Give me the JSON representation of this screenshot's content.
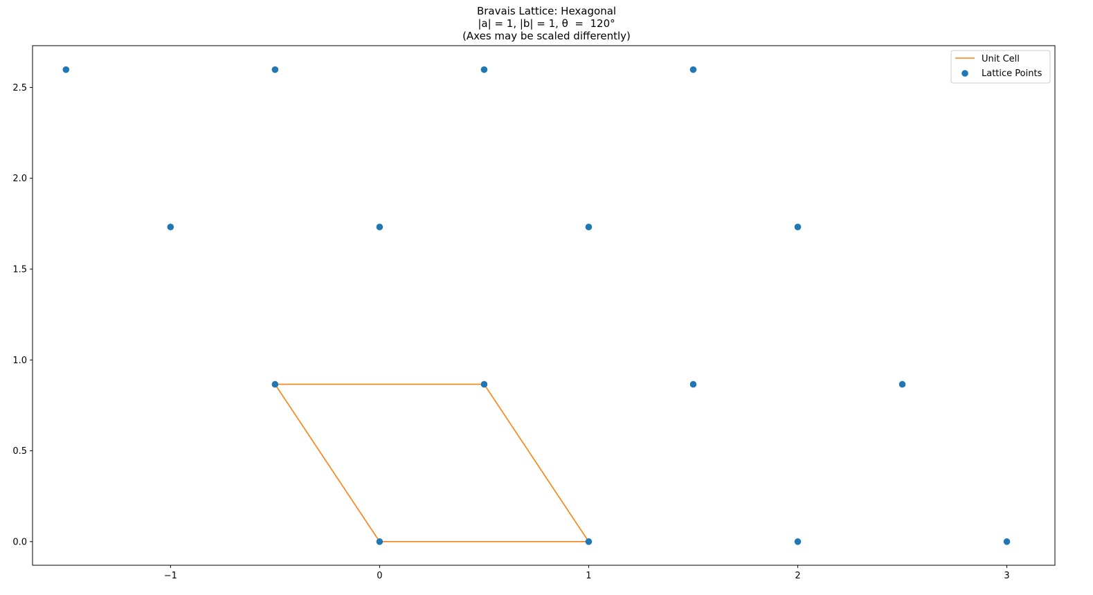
{
  "chart_data": {
    "type": "scatter",
    "title_lines": [
      "Bravais Lattice: Hexagonal",
      "|a| = 1, |b| = 1, θ  =  120°",
      "(Axes may be scaled differently)"
    ],
    "xlabel": "",
    "ylabel": "",
    "xlim": [
      -1.66,
      3.23
    ],
    "ylim": [
      -0.13,
      2.73
    ],
    "xticks": [
      -1,
      0,
      1,
      2,
      3
    ],
    "xtick_labels": [
      "−1",
      "0",
      "1",
      "2",
      "3"
    ],
    "yticks": [
      0.0,
      0.5,
      1.0,
      1.5,
      2.0,
      2.5
    ],
    "ytick_labels": [
      "0.0",
      "0.5",
      "1.0",
      "1.5",
      "2.0",
      "2.5"
    ],
    "grid": false,
    "legend_position": "upper right",
    "series": [
      {
        "name": "Unit Cell",
        "kind": "line",
        "color": "#ff7f0e",
        "points": [
          [
            0,
            0
          ],
          [
            1,
            0
          ],
          [
            0.5,
            0.866
          ],
          [
            -0.5,
            0.866
          ],
          [
            0,
            0
          ]
        ]
      },
      {
        "name": "Lattice Points",
        "kind": "scatter",
        "color": "#1f77b4",
        "points": [
          [
            -1.5,
            2.598
          ],
          [
            -0.5,
            2.598
          ],
          [
            0.5,
            2.598
          ],
          [
            1.5,
            2.598
          ],
          [
            -1,
            1.732
          ],
          [
            0,
            1.732
          ],
          [
            1,
            1.732
          ],
          [
            2,
            1.732
          ],
          [
            -0.5,
            0.866
          ],
          [
            0.5,
            0.866
          ],
          [
            1.5,
            0.866
          ],
          [
            2.5,
            0.866
          ],
          [
            0,
            0
          ],
          [
            1,
            0
          ],
          [
            2,
            0
          ],
          [
            3,
            0
          ]
        ]
      }
    ]
  }
}
